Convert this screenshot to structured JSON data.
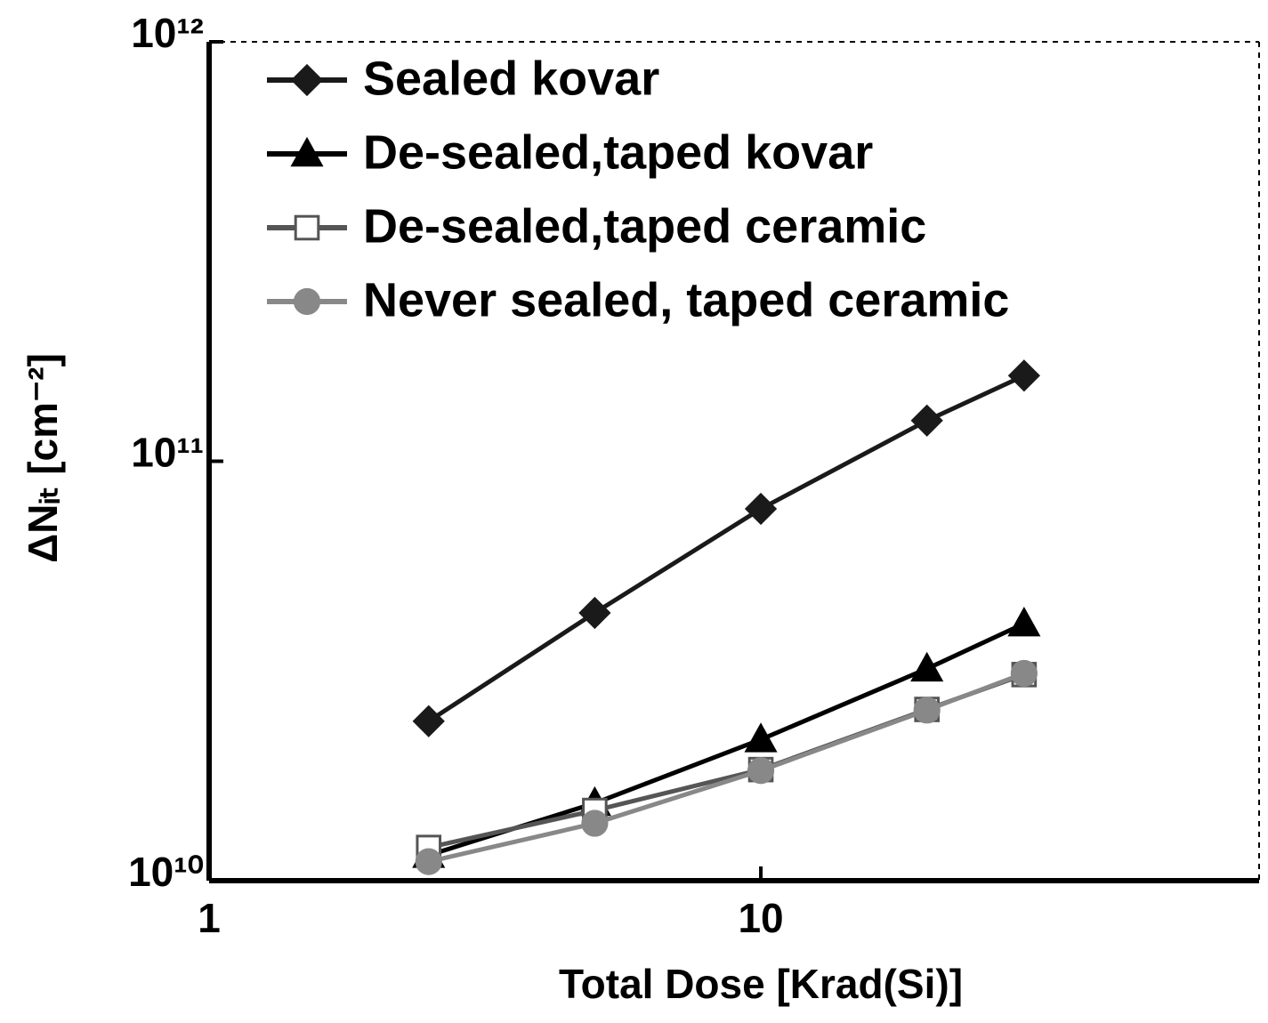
{
  "chart_data": {
    "type": "line",
    "x_label": "Total Dose [Krad(Si)]",
    "y_label": "ΔNᵢₜ [cm⁻²]",
    "x_scale": "log",
    "y_scale": "log",
    "xlim": [
      1,
      80
    ],
    "xticks": [
      1,
      10
    ],
    "ylim": [
      10000000000,
      1000000000000
    ],
    "yticks": [
      {
        "value": 10000000000,
        "label": "10¹⁰"
      },
      {
        "value": 100000000000,
        "label": "10¹¹"
      },
      {
        "value": 1000000000000,
        "label": "10¹²"
      }
    ],
    "legend": "top-left",
    "x": [
      2.5,
      5,
      10,
      20,
      30
    ],
    "series": [
      {
        "name": "Sealed kovar",
        "color": "#1a1a1a",
        "marker": "diamond",
        "marker_fill": "#1a1a1a",
        "values": [
          24000000000,
          43500000000,
          77000000000,
          125000000000,
          160000000000
        ]
      },
      {
        "name": "De-sealed,taped kovar",
        "color": "#000000",
        "marker": "triangle",
        "marker_fill": "#000000",
        "values": [
          11500000000,
          15300000000,
          21700000000,
          32000000000,
          41000000000
        ]
      },
      {
        "name": "De-sealed,taped ceramic",
        "color": "#555555",
        "marker": "square",
        "marker_fill": "#ffffff",
        "values": [
          12000000000,
          14700000000,
          18400000000,
          25600000000,
          31000000000
        ]
      },
      {
        "name": "Never sealed, taped ceramic",
        "color": "#888888",
        "marker": "circle",
        "marker_fill": "#888888",
        "values": [
          11100000000,
          13700000000,
          18300000000,
          25500000000,
          31200000000
        ]
      }
    ]
  }
}
